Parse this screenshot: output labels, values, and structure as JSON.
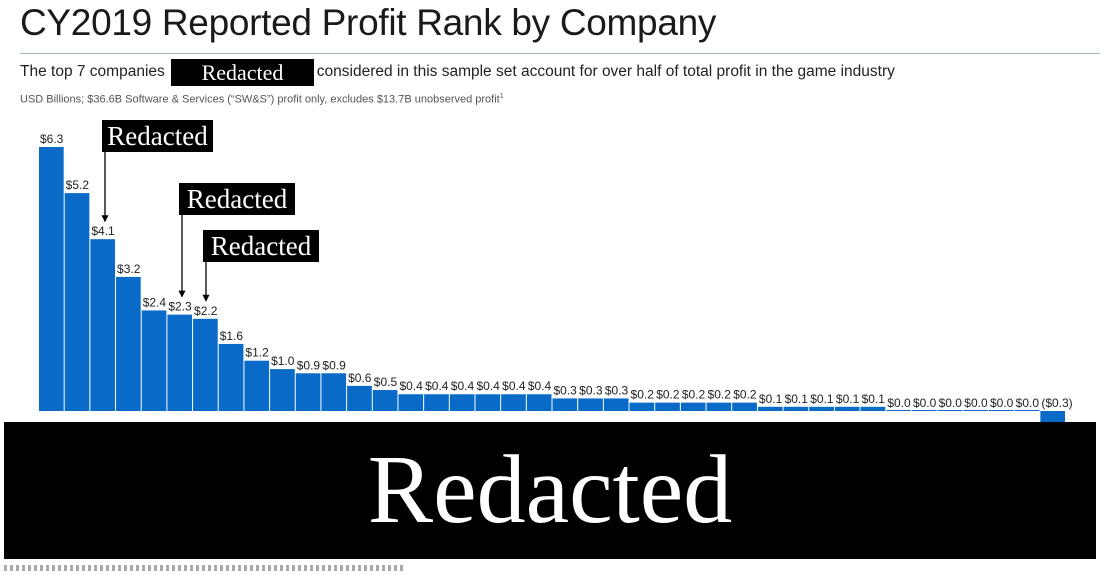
{
  "header": {
    "title": "CY2019 Reported Profit Rank by Company",
    "subtitle_before": "The top 7 companies",
    "subtitle_redacted": "Redacted",
    "subtitle_after": "considered in this sample set account for over half of total profit in the game industry",
    "note": "USD Billions; $36.6B Software & Services (“SW&S”) profit only, excludes $13.7B unobserved profit",
    "note_footnote": "1"
  },
  "callouts": [
    {
      "label": "Redacted",
      "points_to_index": 2
    },
    {
      "label": "Redacted",
      "points_to_index": 5
    },
    {
      "label": "Redacted",
      "points_to_index": 6
    }
  ],
  "footer_redaction": "Redacted",
  "colors": {
    "bar": "#0a6ac8",
    "text": "#222222",
    "redaction": "#000000"
  },
  "chart_data": {
    "type": "bar",
    "values": [
      6.3,
      5.2,
      4.1,
      3.2,
      2.4,
      2.3,
      2.2,
      1.6,
      1.2,
      1.0,
      0.9,
      0.9,
      0.6,
      0.5,
      0.4,
      0.4,
      0.4,
      0.4,
      0.4,
      0.4,
      0.3,
      0.3,
      0.3,
      0.2,
      0.2,
      0.2,
      0.2,
      0.2,
      0.1,
      0.1,
      0.1,
      0.1,
      0.1,
      0.0,
      0.0,
      0.0,
      0.0,
      0.0,
      0.0,
      -0.3
    ],
    "data_labels": [
      "$6.3",
      "$5.2",
      "$4.1",
      "$3.2",
      "$2.4",
      "$2.3",
      "$2.2",
      "$1.6",
      "$1.2",
      "$1.0",
      "$0.9",
      "$0.9",
      "$0.6",
      "$0.5",
      "$0.4",
      "$0.4",
      "$0.4",
      "$0.4",
      "$0.4",
      "$0.4",
      "$0.3",
      "$0.3",
      "$0.3",
      "$0.2",
      "$0.2",
      "$0.2",
      "$0.2",
      "$0.2",
      "$0.1",
      "$0.1",
      "$0.1",
      "$0.1",
      "$0.1",
      "$0.0",
      "$0.0",
      "$0.0",
      "$0.0",
      "$0.0",
      "$0.0",
      "($0.3)"
    ],
    "units": "USD Billions",
    "title": "CY2019 Reported Profit Rank by Company",
    "ylim": [
      -0.3,
      6.3
    ],
    "grid": false,
    "legend": "none"
  }
}
